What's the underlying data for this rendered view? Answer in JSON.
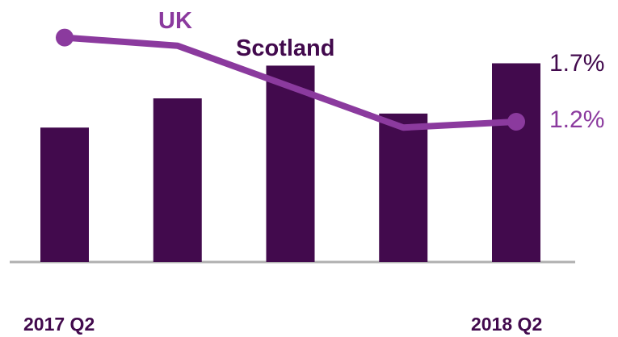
{
  "chart_data": {
    "type": "bar+line",
    "categories": [
      "2017 Q2",
      "",
      "",
      "",
      "2018 Q2"
    ],
    "series": [
      {
        "name": "Scotland",
        "type": "bar",
        "values": [
          1.15,
          1.4,
          1.68,
          1.27,
          1.7
        ]
      },
      {
        "name": "UK",
        "type": "line",
        "values": [
          1.92,
          1.85,
          1.5,
          1.15,
          1.2
        ]
      }
    ],
    "value_labels": {
      "scotland_last": "1.7%",
      "uk_last": "1.2%"
    },
    "ylim": [
      0,
      2.0
    ],
    "grid": false,
    "legend": "inline labels",
    "colors": {
      "scotland": "#420a4d",
      "uk": "#8b3a9e",
      "baseline": "#b0b0b0"
    }
  }
}
